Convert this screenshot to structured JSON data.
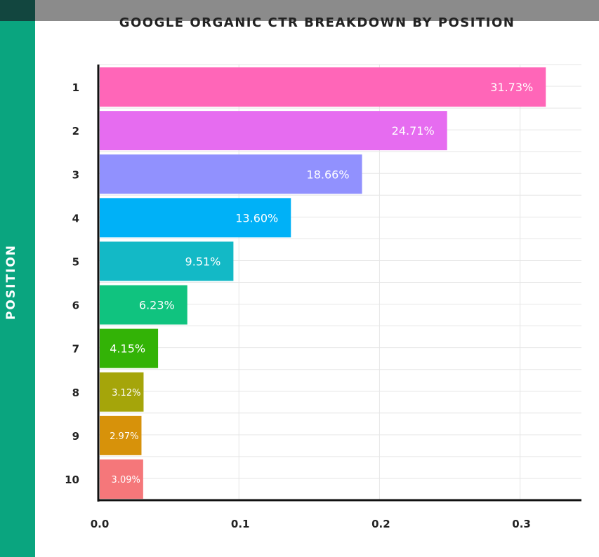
{
  "chart_data": {
    "type": "bar",
    "orientation": "horizontal",
    "title": "GOOGLE ORGANIC CTR BREAKDOWN BY POSITION",
    "ylabel": "POSITION",
    "xlabel": "",
    "categories": [
      "1",
      "2",
      "3",
      "4",
      "5",
      "6",
      "7",
      "8",
      "9",
      "10"
    ],
    "values": [
      0.3173,
      0.2471,
      0.1866,
      0.136,
      0.0951,
      0.0623,
      0.0415,
      0.0312,
      0.0297,
      0.0309
    ],
    "data_labels": [
      "31.73%",
      "24.71%",
      "18.66%",
      "13.60%",
      "9.51%",
      "6.23%",
      "4.15%",
      "3.12%",
      "2.97%",
      "3.09%"
    ],
    "colors": [
      "#ff66b8",
      "#e66cf0",
      "#9191fe",
      "#00b1f7",
      "#13b9c6",
      "#10c37f",
      "#33b306",
      "#a5a50a",
      "#d7920a",
      "#f5777a"
    ],
    "x_ticks": [
      "0.0",
      "0.1",
      "0.2",
      "0.3"
    ],
    "x_tick_values": [
      0,
      0.1,
      0.2,
      0.3
    ],
    "xlim": [
      0,
      0.345
    ],
    "grid": true,
    "legend": "none"
  },
  "theme": {
    "side_band_color": "#0aa57f",
    "side_band_top_color": "#12463f",
    "top_band_color": "#8b8b8b"
  }
}
